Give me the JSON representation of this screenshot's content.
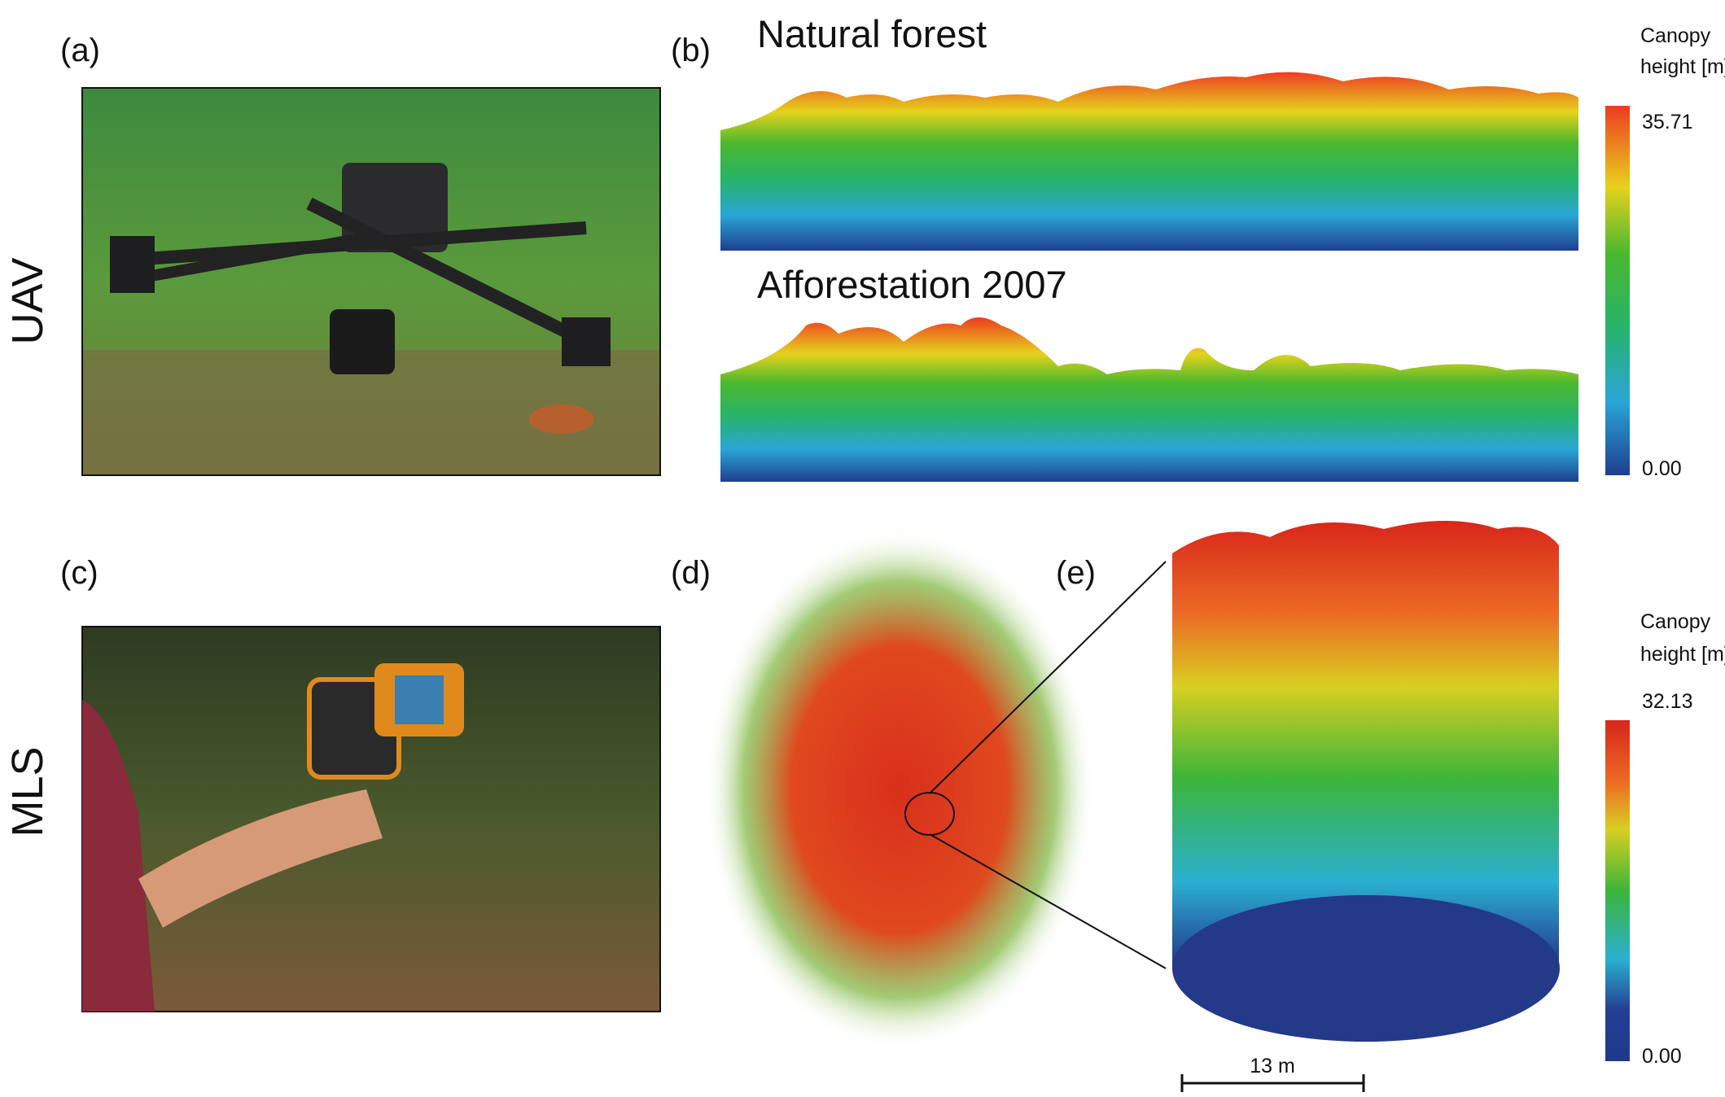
{
  "panels": {
    "a": {
      "label": "(a)",
      "row_label": "UAV"
    },
    "b": {
      "label": "(b)",
      "top_title": "Natural forest",
      "bottom_title": "Afforestation 2007",
      "colorbar": {
        "title_line1": "Canopy",
        "title_line2": "height [m]",
        "max": "35.71",
        "min": "0.00"
      }
    },
    "c": {
      "label": "(c)",
      "row_label": "MLS"
    },
    "d": {
      "label": "(d)"
    },
    "e": {
      "label": "(e)",
      "scale_bar": "13 m",
      "colorbar": {
        "title_line1": "Canopy",
        "title_line2": "height [m]",
        "max": "32.13",
        "min": "0.00"
      }
    }
  }
}
